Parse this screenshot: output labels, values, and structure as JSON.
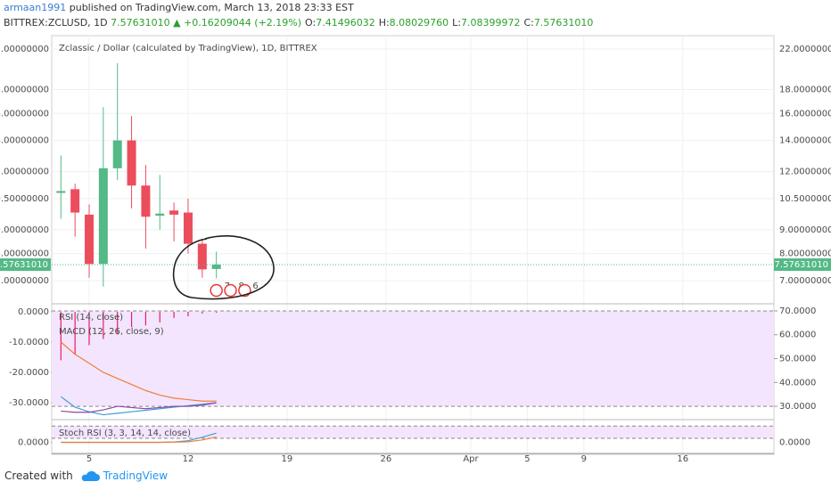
{
  "header": {
    "author": "armaan1991",
    "published": "published on TradingView.com, March 13, 2018 23:33 EST",
    "symbol": "BITTREX:ZCLUSD, 1D",
    "last": "7.57631010",
    "change": "▲ +0.16209044 (+2.19%)",
    "ohlc": [
      {
        "label": "O:",
        "value": "7.41496032"
      },
      {
        "label": "H:",
        "value": "8.08029760"
      },
      {
        "label": "L:",
        "value": "7.08399972"
      },
      {
        "label": "C:",
        "value": "7.57631010"
      }
    ]
  },
  "chart_data": [
    {
      "type": "candlestick",
      "title": "Zclassic / Dollar (calculated by TradingView), 1D, BITTREX",
      "x": [
        3,
        4,
        5,
        6,
        7,
        8,
        9,
        10,
        11,
        12,
        13,
        14
      ],
      "open": [
        10.8,
        11.0,
        9.7,
        7.6,
        12.2,
        14.0,
        11.2,
        9.65,
        9.9,
        9.8,
        8.4,
        7.41496032
      ],
      "high": [
        13.0,
        11.3,
        10.2,
        16.5,
        20.5,
        15.8,
        12.4,
        11.8,
        10.3,
        10.5,
        8.6,
        8.0802976
      ],
      "low": [
        9.5,
        8.7,
        7.1,
        6.8,
        11.5,
        10.0,
        8.2,
        9.0,
        8.5,
        8.0,
        7.1,
        7.08399972
      ],
      "close": [
        10.9,
        9.8,
        7.6,
        12.2,
        14.0,
        11.2,
        9.6,
        9.75,
        9.7,
        8.4,
        7.4,
        7.5763101
      ],
      "up_color": "#53b987",
      "down_color": "#eb4d5c",
      "xlim": [
        2.35,
        53.45
      ],
      "xticks": [
        5,
        12,
        19,
        26,
        {
          "value": 32,
          "label": "Apr"
        },
        {
          "value": 36,
          "label": "5"
        },
        {
          "value": 40,
          "label": "9"
        },
        {
          "value": 47,
          "label": "16"
        }
      ],
      "ylim": [
        6.27,
        23.5
      ],
      "log_scale": true,
      "yticks": [
        {
          "value": 7,
          "label": "7.00000000"
        },
        {
          "value": 8,
          "label": "8.00000000"
        },
        {
          "value": 9,
          "label": "9.00000000"
        },
        {
          "value": 10.5,
          "label": "10.50000000"
        },
        {
          "value": 12,
          "label": "12.00000000"
        },
        {
          "value": 14,
          "label": "14.00000000"
        },
        {
          "value": 16,
          "label": "16.00000000"
        },
        {
          "value": 18,
          "label": "18.00000000"
        },
        {
          "value": 22,
          "label": "22.00000000"
        }
      ],
      "last_price": {
        "value": 7.5763101,
        "label": "7.57631010"
      },
      "events": {
        "x": [
          14,
          15,
          16
        ],
        "labels": [
          "7",
          "8",
          "6"
        ]
      },
      "grid": true
    },
    {
      "type": "line",
      "indicators": [
        "RSI (14, close)",
        "MACD (12, 26, close, 9)"
      ],
      "x": [
        3,
        4,
        5,
        6,
        7,
        8,
        9,
        10,
        11,
        12,
        13,
        14
      ],
      "ylim": [
        -35.3,
        2.35
      ],
      "yticks": [
        {
          "value": 0,
          "label": "0.0000"
        },
        {
          "value": -10,
          "label": "-10.0000"
        },
        {
          "value": -20,
          "label": "-20.0000"
        },
        {
          "value": -30,
          "label": "-30.0000"
        }
      ],
      "y2lim": [
        24.8,
        72.6
      ],
      "y2ticks": [
        {
          "value": 30,
          "label": "30.0000"
        },
        {
          "value": 40,
          "label": "40.0000"
        },
        {
          "value": 50,
          "label": "50.0000"
        },
        {
          "value": 60,
          "label": "60.0000"
        },
        {
          "value": 70,
          "label": "70.0000"
        }
      ],
      "band": [
        30,
        70
      ],
      "band_axis": "y2",
      "series": [
        {
          "style": "histogram",
          "color": "#e91e63",
          "values": [
            -16,
            -14,
            -11,
            -9,
            -7.5,
            -5,
            -4.5,
            -3.5,
            -2,
            -1.5,
            -0.6,
            -0.3
          ]
        },
        {
          "color": "#f57c3a",
          "values": [
            -10,
            -14,
            -17,
            -20,
            -22,
            -24,
            -26,
            -27.5,
            -28.5,
            -29,
            -29.5,
            -29.5
          ]
        },
        {
          "color": "#3ba0d6",
          "values": [
            -28,
            -31.5,
            -33,
            -34,
            -33.5,
            -33,
            -32.5,
            -32,
            -31.5,
            -31,
            -30.5,
            -30
          ]
        },
        {
          "color": "#8e44ad",
          "axis": "y2",
          "values": [
            28,
            27.5,
            27.5,
            28.5,
            30,
            29.5,
            29,
            29.5,
            30,
            30,
            30.5,
            31.5
          ]
        }
      ]
    },
    {
      "type": "line",
      "indicators": [
        "Stoch RSI (3, 3, 14, 14, close)"
      ],
      "x": [
        3,
        4,
        5,
        6,
        7,
        8,
        9,
        10,
        11,
        12,
        13,
        14
      ],
      "ylim": [
        -50,
        107
      ],
      "yticks": [
        {
          "value": 0,
          "label": "0.0000"
        }
      ],
      "band": [
        20,
        80
      ],
      "band_axis": "y",
      "series": [
        {
          "color": "#3ba0d6",
          "values": [
            0,
            0,
            0,
            0,
            0,
            0,
            0,
            0,
            2,
            8,
            25,
            45
          ]
        },
        {
          "color": "#f57c3a",
          "values": [
            0,
            0,
            0,
            0,
            0,
            0,
            0,
            0,
            1,
            3,
            12,
            26
          ]
        }
      ]
    }
  ],
  "footer": {
    "created": "Created with",
    "brand": "TradingView"
  }
}
